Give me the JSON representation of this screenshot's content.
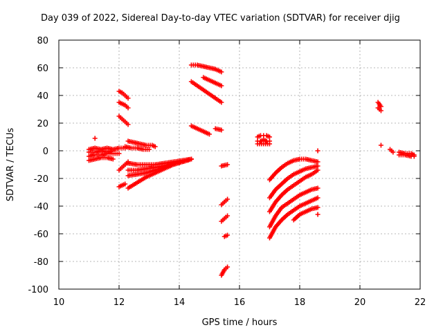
{
  "chart_data": {
    "type": "scatter",
    "title": "Day 039 of 2022, Sidereal Day-to-day VTEC variation (SDTVAR) for receiver djig",
    "xlabel": "GPS time / hours",
    "ylabel": "SDTVAR / TECUs",
    "xlim": [
      10,
      22
    ],
    "ylim": [
      -100,
      80
    ],
    "xticks": [
      10,
      12,
      14,
      16,
      18,
      20,
      22
    ],
    "yticks": [
      -100,
      -80,
      -60,
      -40,
      -20,
      0,
      20,
      40,
      60,
      80
    ],
    "grid": true,
    "marker": "plus",
    "color": "#ff0000",
    "segments": [
      {
        "x": [
          11.0,
          11.2,
          11.4,
          11.6,
          11.8,
          12.0,
          12.2
        ],
        "y": [
          1,
          2,
          1,
          2,
          1,
          2,
          2
        ]
      },
      {
        "x": [
          11.0,
          11.2,
          11.4,
          11.6,
          11.8
        ],
        "y": [
          -1,
          -1,
          0,
          -1,
          0
        ]
      },
      {
        "x": [
          11.0,
          11.2,
          11.4,
          11.6,
          11.8,
          12.0
        ],
        "y": [
          -4,
          -3,
          -3,
          -2,
          -2,
          -2
        ]
      },
      {
        "x": [
          11.0,
          11.2,
          11.4,
          11.6,
          11.8
        ],
        "y": [
          -7,
          -6,
          -5,
          -5,
          -6
        ]
      },
      {
        "x": [
          11.2
        ],
        "y": [
          9
        ]
      },
      {
        "x": [
          12.0,
          12.1,
          12.2,
          12.3
        ],
        "y": [
          43,
          42,
          40,
          38
        ]
      },
      {
        "x": [
          12.0,
          12.1,
          12.2,
          12.3
        ],
        "y": [
          35,
          34,
          33,
          31
        ]
      },
      {
        "x": [
          12.0,
          12.1,
          12.2,
          12.3
        ],
        "y": [
          25,
          23,
          21,
          19
        ]
      },
      {
        "x": [
          12.3,
          12.5,
          12.7,
          12.9,
          13.1,
          13.2
        ],
        "y": [
          7,
          6,
          5,
          4,
          4,
          3
        ]
      },
      {
        "x": [
          12.2,
          12.4,
          12.6,
          12.8,
          13.0
        ],
        "y": [
          3,
          2,
          2,
          1,
          1
        ]
      },
      {
        "x": [
          12.0,
          12.1,
          12.2
        ],
        "y": [
          -26,
          -25,
          -24
        ]
      },
      {
        "x": [
          12.0,
          12.1,
          12.2,
          12.3
        ],
        "y": [
          -14,
          -12,
          -10,
          -8
        ]
      },
      {
        "x": [
          12.3,
          12.6,
          12.9,
          13.2,
          13.5,
          13.8,
          14.1,
          14.4
        ],
        "y": [
          -9,
          -10,
          -10,
          -10,
          -9,
          -8,
          -7,
          -6
        ]
      },
      {
        "x": [
          12.3,
          12.6,
          12.9,
          13.2,
          13.5,
          13.8,
          14.1,
          14.4
        ],
        "y": [
          -14,
          -14,
          -13,
          -12,
          -11,
          -9,
          -8,
          -6
        ]
      },
      {
        "x": [
          12.3,
          12.6,
          12.9,
          13.2,
          13.5,
          13.8,
          14.1,
          14.4
        ],
        "y": [
          -18,
          -17,
          -16,
          -14,
          -12,
          -10,
          -8,
          -6
        ]
      },
      {
        "x": [
          12.3,
          12.6,
          12.9,
          13.2,
          13.5,
          13.8,
          14.1,
          14.4
        ],
        "y": [
          -27,
          -23,
          -19,
          -16,
          -13,
          -10,
          -8,
          -6
        ]
      },
      {
        "x": [
          14.4,
          14.6,
          14.8,
          15.0,
          15.2,
          15.4
        ],
        "y": [
          62,
          62,
          61,
          60,
          59,
          57
        ]
      },
      {
        "x": [
          14.4,
          14.6,
          14.8,
          15.0,
          15.2,
          15.4
        ],
        "y": [
          50,
          47,
          44,
          41,
          38,
          35
        ]
      },
      {
        "x": [
          14.8,
          15.0,
          15.2,
          15.4
        ],
        "y": [
          53,
          51,
          49,
          47
        ]
      },
      {
        "x": [
          14.4,
          14.6,
          14.8,
          15.0
        ],
        "y": [
          18,
          16,
          14,
          12
        ]
      },
      {
        "x": [
          15.2,
          15.4
        ],
        "y": [
          16,
          15
        ]
      },
      {
        "x": [
          15.4,
          15.6
        ],
        "y": [
          -11,
          -10
        ]
      },
      {
        "x": [
          15.4,
          15.5,
          15.6
        ],
        "y": [
          -39,
          -37,
          -35
        ]
      },
      {
        "x": [
          15.4,
          15.5,
          15.6
        ],
        "y": [
          -51,
          -49,
          -47
        ]
      },
      {
        "x": [
          15.5,
          15.6
        ],
        "y": [
          -62,
          -61
        ]
      },
      {
        "x": [
          15.4,
          15.5,
          15.6
        ],
        "y": [
          -90,
          -86,
          -84
        ]
      },
      {
        "x": [
          16.6,
          16.7,
          16.8,
          16.9,
          17.0
        ],
        "y": [
          10,
          11,
          11,
          11,
          10
        ]
      },
      {
        "x": [
          16.6,
          16.7,
          16.8,
          16.9,
          17.0
        ],
        "y": [
          7,
          7,
          8,
          7,
          7
        ]
      },
      {
        "x": [
          16.6,
          16.8,
          17.0
        ],
        "y": [
          5,
          5,
          5
        ]
      },
      {
        "x": [
          17.0,
          17.2,
          17.4,
          17.6,
          17.8,
          18.0,
          18.2,
          18.4,
          18.6
        ],
        "y": [
          -21,
          -16,
          -12,
          -9,
          -7,
          -6,
          -6,
          -7,
          -8
        ]
      },
      {
        "x": [
          17.0,
          17.2,
          17.4,
          17.6,
          17.8,
          18.0,
          18.2,
          18.4,
          18.6
        ],
        "y": [
          -34,
          -28,
          -24,
          -20,
          -17,
          -15,
          -13,
          -12,
          -11
        ]
      },
      {
        "x": [
          17.0,
          17.2,
          17.4,
          17.6,
          17.8,
          18.0,
          18.2,
          18.4,
          18.6
        ],
        "y": [
          -44,
          -37,
          -32,
          -28,
          -25,
          -22,
          -19,
          -17,
          -14
        ]
      },
      {
        "x": [
          17.0,
          17.2,
          17.4,
          17.6,
          17.8,
          18.0,
          18.2,
          18.4,
          18.6
        ],
        "y": [
          -55,
          -47,
          -41,
          -38,
          -35,
          -32,
          -30,
          -28,
          -27
        ]
      },
      {
        "x": [
          17.0,
          17.2,
          17.4,
          17.6,
          17.8,
          18.0,
          18.2,
          18.4,
          18.6
        ],
        "y": [
          -63,
          -55,
          -50,
          -46,
          -43,
          -40,
          -38,
          -36,
          -34
        ]
      },
      {
        "x": [
          17.8,
          18.0,
          18.2,
          18.4,
          18.6
        ],
        "y": [
          -50,
          -46,
          -44,
          -42,
          -41
        ]
      },
      {
        "x": [
          18.6
        ],
        "y": [
          0
        ]
      },
      {
        "x": [
          18.6
        ],
        "y": [
          -46
        ]
      },
      {
        "x": [
          20.6,
          20.7
        ],
        "y": [
          35,
          32
        ]
      },
      {
        "x": [
          20.6,
          20.7
        ],
        "y": [
          31,
          29
        ]
      },
      {
        "x": [
          20.7
        ],
        "y": [
          4
        ]
      },
      {
        "x": [
          21.0,
          21.1
        ],
        "y": [
          1,
          -1
        ]
      },
      {
        "x": [
          21.3,
          21.5,
          21.7,
          21.8
        ],
        "y": [
          -1,
          -2,
          -2,
          -3
        ]
      },
      {
        "x": [
          21.3,
          21.5,
          21.7,
          21.8
        ],
        "y": [
          -3,
          -3,
          -4,
          -4
        ]
      }
    ]
  }
}
